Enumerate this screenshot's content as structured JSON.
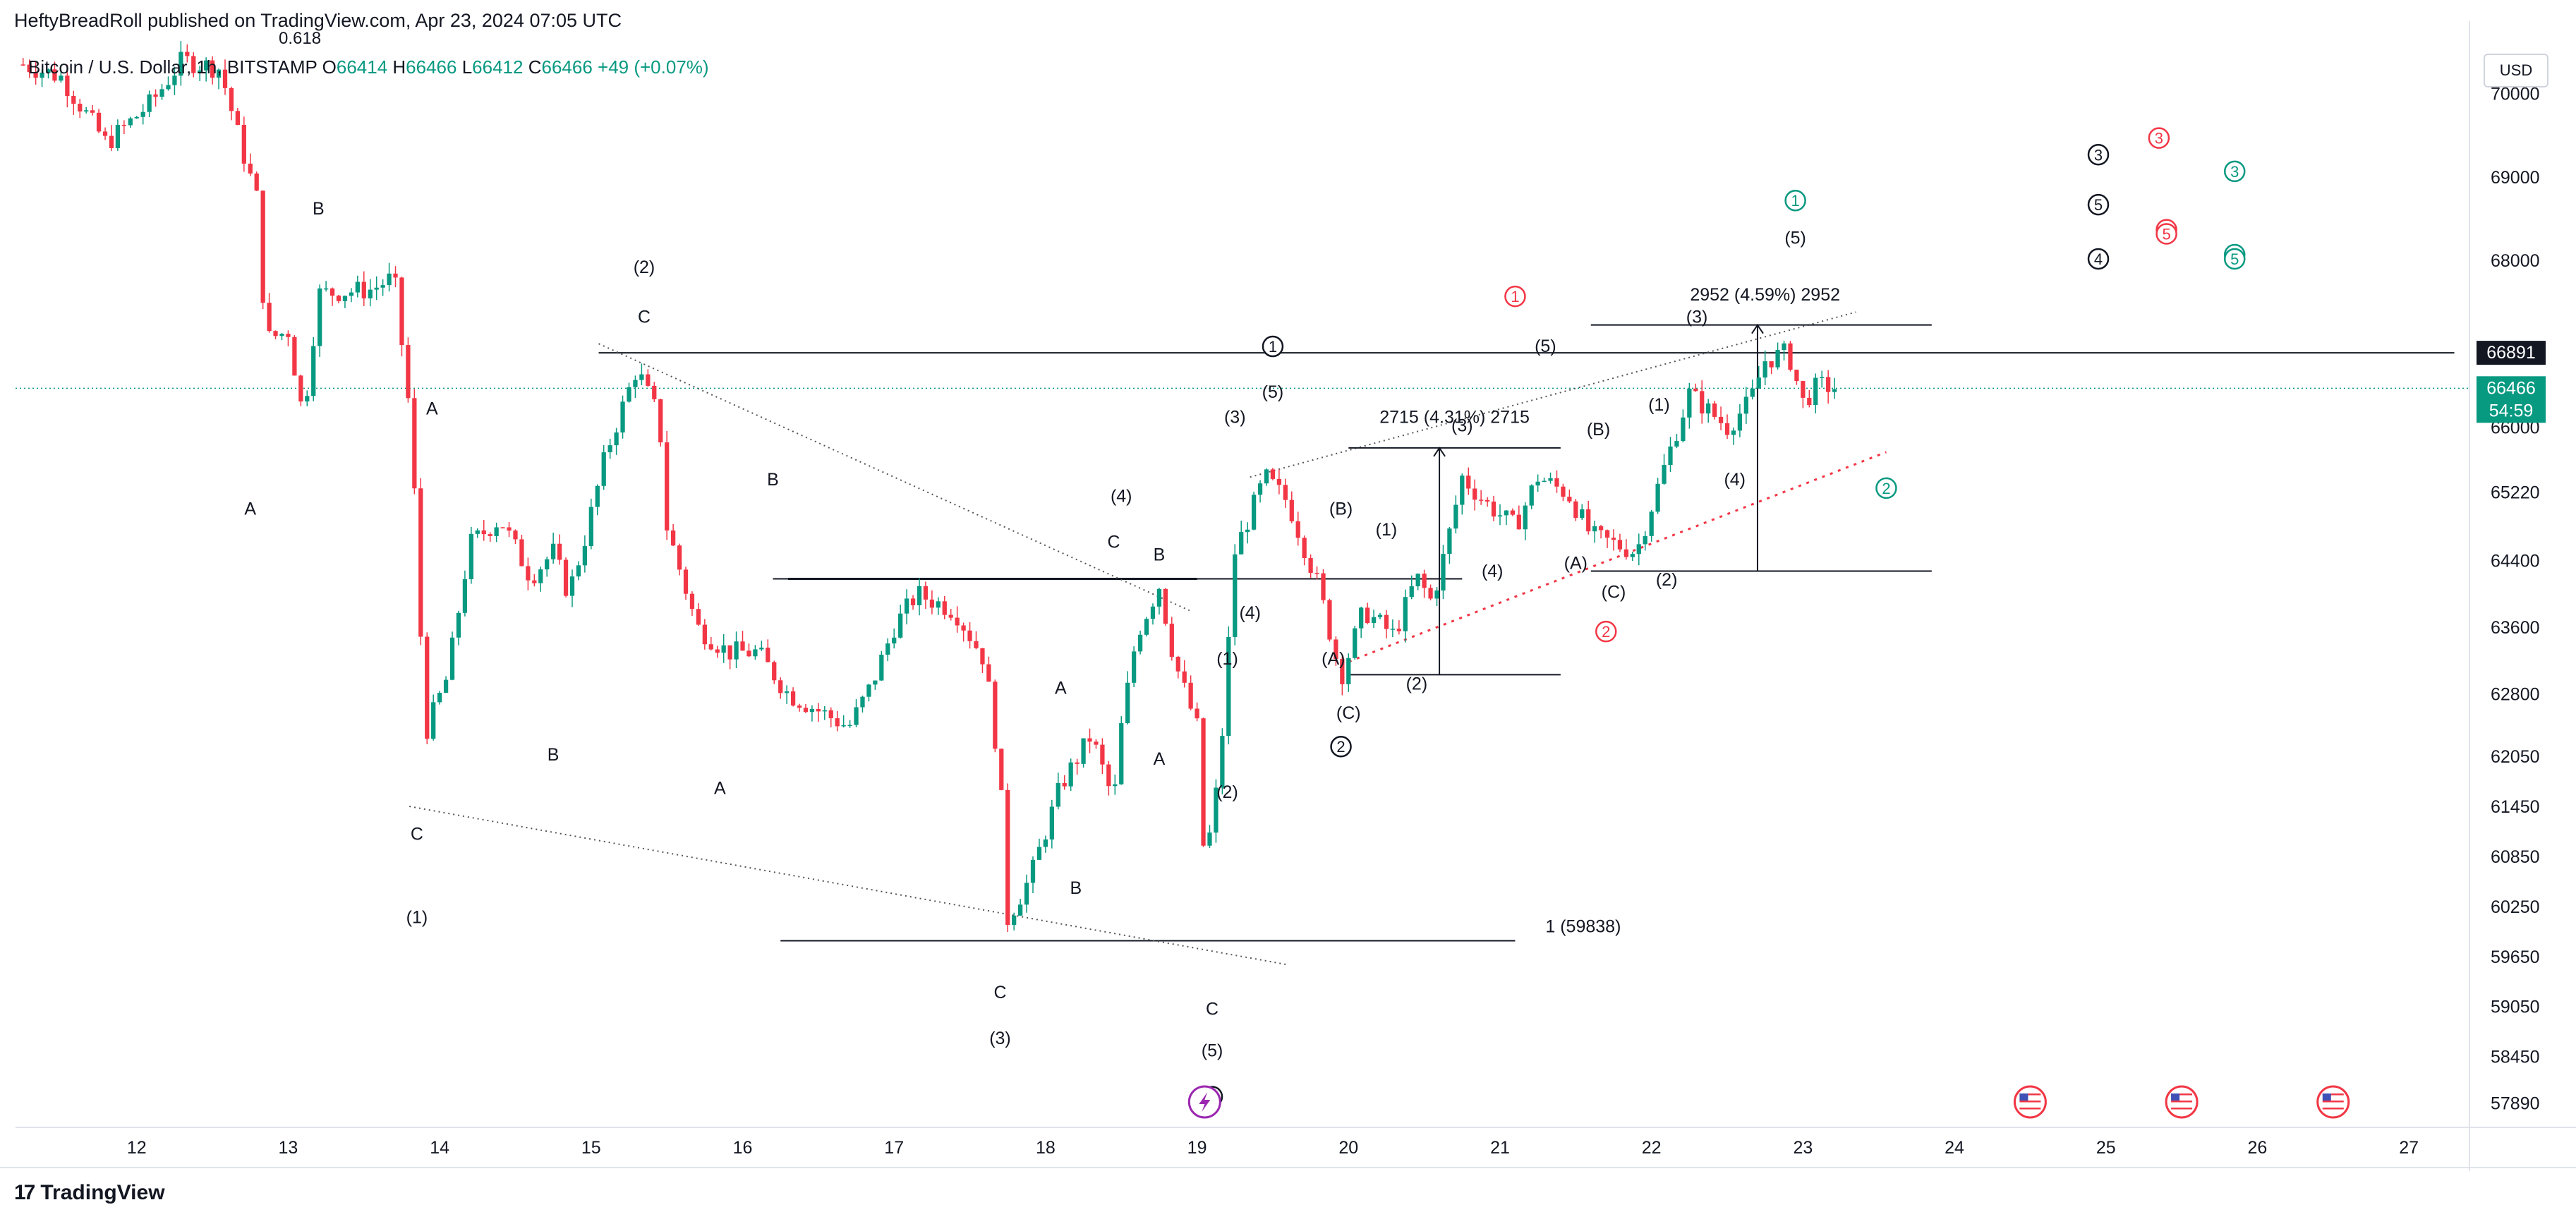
{
  "header": {
    "published_by": "HeftyBreadRoll published on TradingView.com, Apr 23, 2024 07:05 UTC",
    "currency_button": "USD",
    "brand": "TradingView"
  },
  "colors": {
    "up": "#089981",
    "down": "#f23645",
    "text": "#131722",
    "axis_border": "#e0e3eb",
    "dotted_red": "#f23645"
  },
  "chart_data": {
    "type": "candlestick",
    "symbol_line": {
      "symbol": "Bitcoin / U.S. Dollar, 1h, BITSTAMP",
      "open_label": "O",
      "open": "66414",
      "high_label": "H",
      "high": "66466",
      "low_label": "L",
      "low": "66412",
      "close_label": "C",
      "close": "66466",
      "change": "+49 (+0.07%)",
      "fib_label": "0.618"
    },
    "ylim": [
      57600,
      70700
    ],
    "y_ticks": [
      70000,
      69000,
      68000,
      66000,
      65220,
      64400,
      63600,
      62800,
      62050,
      61450,
      60850,
      60250,
      59650,
      59050,
      58450,
      57890
    ],
    "x_ticks": [
      {
        "label": "12",
        "day": 12
      },
      {
        "label": "13",
        "day": 13
      },
      {
        "label": "14",
        "day": 14
      },
      {
        "label": "15",
        "day": 15
      },
      {
        "label": "16",
        "day": 16
      },
      {
        "label": "17",
        "day": 17
      },
      {
        "label": "18",
        "day": 18
      },
      {
        "label": "19",
        "day": 19
      },
      {
        "label": "20",
        "day": 20
      },
      {
        "label": "21",
        "day": 21
      },
      {
        "label": "22",
        "day": 22
      },
      {
        "label": "23",
        "day": 23
      },
      {
        "label": "24",
        "day": 24
      },
      {
        "label": "25",
        "day": 25
      },
      {
        "label": "26",
        "day": 26
      },
      {
        "label": "27",
        "day": 27
      }
    ],
    "xlim": [
      11.2,
      27.4
    ],
    "price_badges": [
      {
        "value": "66891",
        "price": 66891,
        "bg": "#131722"
      },
      {
        "value": "66466",
        "sub": "54:59",
        "price": 66466,
        "bg": "#089981"
      }
    ],
    "path_points": [
      [
        11.25,
        70350
      ],
      [
        11.5,
        70200
      ],
      [
        11.8,
        69400
      ],
      [
        12.1,
        69900
      ],
      [
        12.3,
        70400
      ],
      [
        12.55,
        70300
      ],
      [
        12.7,
        69300
      ],
      [
        12.8,
        68700
      ],
      [
        12.85,
        67050
      ],
      [
        13.0,
        67150
      ],
      [
        13.1,
        66100
      ],
      [
        13.2,
        67600
      ],
      [
        13.55,
        67650
      ],
      [
        13.7,
        67800
      ],
      [
        13.8,
        66200
      ],
      [
        13.85,
        64700
      ],
      [
        13.9,
        62300
      ],
      [
        14.05,
        63000
      ],
      [
        14.2,
        64600
      ],
      [
        14.4,
        64900
      ],
      [
        14.6,
        64200
      ],
      [
        14.75,
        64500
      ],
      [
        14.85,
        64000
      ],
      [
        14.95,
        64600
      ],
      [
        15.1,
        65700
      ],
      [
        15.3,
        66700
      ],
      [
        15.45,
        66100
      ],
      [
        15.5,
        64800
      ],
      [
        15.7,
        63600
      ],
      [
        15.9,
        63300
      ],
      [
        16.1,
        63300
      ],
      [
        16.3,
        62800
      ],
      [
        16.5,
        62600
      ],
      [
        16.7,
        62400
      ],
      [
        16.85,
        62900
      ],
      [
        17.0,
        63600
      ],
      [
        17.15,
        64000
      ],
      [
        17.4,
        63800
      ],
      [
        17.6,
        63200
      ],
      [
        17.7,
        61800
      ],
      [
        17.75,
        60100
      ],
      [
        17.9,
        60600
      ],
      [
        18.1,
        61700
      ],
      [
        18.3,
        62300
      ],
      [
        18.45,
        61500
      ],
      [
        18.5,
        62400
      ],
      [
        18.6,
        63500
      ],
      [
        18.75,
        64100
      ],
      [
        18.85,
        63200
      ],
      [
        19.0,
        62400
      ],
      [
        19.05,
        60700
      ],
      [
        19.15,
        61900
      ],
      [
        19.25,
        64500
      ],
      [
        19.45,
        65400
      ],
      [
        19.6,
        65100
      ],
      [
        19.8,
        64100
      ],
      [
        19.95,
        63000
      ],
      [
        20.1,
        63800
      ],
      [
        20.3,
        63500
      ],
      [
        20.45,
        64200
      ],
      [
        20.55,
        63900
      ],
      [
        20.65,
        64600
      ],
      [
        20.75,
        65400
      ],
      [
        20.9,
        65100
      ],
      [
        21.1,
        64800
      ],
      [
        21.25,
        65400
      ],
      [
        21.45,
        65200
      ],
      [
        21.6,
        64700
      ],
      [
        21.75,
        64600
      ],
      [
        21.9,
        64500
      ],
      [
        22.1,
        65600
      ],
      [
        22.25,
        66400
      ],
      [
        22.5,
        66000
      ],
      [
        22.65,
        66300
      ],
      [
        22.75,
        66800
      ],
      [
        22.9,
        66900
      ],
      [
        23.0,
        66300
      ],
      [
        23.1,
        66500
      ],
      [
        23.25,
        66466
      ]
    ],
    "horizontal_lines": [
      {
        "from_day": 15.05,
        "to_day": 27.3,
        "price": 66891,
        "color": "#131722",
        "width": 2
      },
      {
        "from_day": 16.3,
        "to_day": 19.0,
        "price": 64180,
        "color": "#131722",
        "width": 3
      },
      {
        "from_day": 16.2,
        "to_day": 20.75,
        "price": 64180,
        "color": "#131722",
        "width": 2
      },
      {
        "from_day": 16.25,
        "to_day": 21.1,
        "price": 59838,
        "color": "#131722",
        "width": 2
      }
    ],
    "projection_boxes": [
      {
        "label": "2715 (4.31%) 2715",
        "from_day": 20.0,
        "to_day": 21.4,
        "top": 65750,
        "bottom": 63030,
        "arrow_day": 20.6,
        "label_day": 20.7,
        "label_price": 66050
      },
      {
        "label": "2952 (4.59%) 2952",
        "from_day": 21.6,
        "to_day": 23.85,
        "top": 67225,
        "bottom": 64273,
        "arrow_day": 22.7,
        "label_day": 22.75,
        "label_price": 67520
      }
    ],
    "fib_extension_label": {
      "text": "1 (59838)",
      "day": 21.3,
      "price": 59838
    },
    "dotted_lines": [
      {
        "from": [
          13.8,
          61450
        ],
        "to": [
          19.6,
          59550
        ],
        "color": "#555"
      },
      {
        "from": [
          15.05,
          67000
        ],
        "to": [
          18.95,
          63800
        ],
        "color": "#555"
      },
      {
        "from": [
          19.35,
          65400
        ],
        "to": [
          23.35,
          67380
        ],
        "color": "#555"
      },
      {
        "from": [
          19.95,
          63150
        ],
        "to": [
          23.55,
          65700
        ],
        "color": "#f23645"
      }
    ],
    "wave_labels": [
      {
        "text": "B",
        "day": 13.2,
        "price": 68550
      },
      {
        "text": "A",
        "day": 12.75,
        "price": 64950
      },
      {
        "text": "A",
        "day": 13.95,
        "price": 66150
      },
      {
        "text": "C",
        "day": 13.85,
        "price": 61050
      },
      {
        "text": "(1)",
        "day": 13.85,
        "price": 60050
      },
      {
        "text": "B",
        "day": 14.75,
        "price": 62000
      },
      {
        "text": "(2)",
        "day": 15.35,
        "price": 67850
      },
      {
        "text": "C",
        "day": 15.35,
        "price": 67250
      },
      {
        "text": "B",
        "day": 16.2,
        "price": 65300
      },
      {
        "text": "A",
        "day": 15.85,
        "price": 61600
      },
      {
        "text": "(4)",
        "day": 18.5,
        "price": 65100
      },
      {
        "text": "C",
        "day": 18.45,
        "price": 64550
      },
      {
        "text": "B",
        "day": 18.75,
        "price": 64400
      },
      {
        "text": "A",
        "day": 18.1,
        "price": 62800
      },
      {
        "text": "A",
        "day": 18.75,
        "price": 61950
      },
      {
        "text": "B",
        "day": 18.2,
        "price": 60400
      },
      {
        "text": "C",
        "day": 17.7,
        "price": 59150
      },
      {
        "text": "(3)",
        "day": 17.7,
        "price": 58600
      },
      {
        "text": "C",
        "day": 19.1,
        "price": 58950
      },
      {
        "text": "(5)",
        "day": 19.1,
        "price": 58450
      },
      {
        "text": "(3)",
        "day": 19.25,
        "price": 66050
      },
      {
        "text": "(5)",
        "day": 19.5,
        "price": 66350
      },
      {
        "text": "(4)",
        "day": 19.35,
        "price": 63700
      },
      {
        "text": "(1)",
        "day": 19.2,
        "price": 63150
      },
      {
        "text": "(2)",
        "day": 19.2,
        "price": 61550
      },
      {
        "text": "(B)",
        "day": 19.95,
        "price": 64950
      },
      {
        "text": "(A)",
        "day": 19.9,
        "price": 63150
      },
      {
        "text": "(C)",
        "day": 20.0,
        "price": 62500
      },
      {
        "text": "(1)",
        "day": 20.25,
        "price": 64700
      },
      {
        "text": "(3)",
        "day": 20.75,
        "price": 65950
      },
      {
        "text": "(4)",
        "day": 20.95,
        "price": 64200
      },
      {
        "text": "(2)",
        "day": 20.45,
        "price": 62850
      },
      {
        "text": "(5)",
        "day": 21.3,
        "price": 66900
      },
      {
        "text": "(B)",
        "day": 21.65,
        "price": 65900
      },
      {
        "text": "(A)",
        "day": 21.5,
        "price": 64300
      },
      {
        "text": "(C)",
        "day": 21.75,
        "price": 63950
      },
      {
        "text": "(2)",
        "day": 22.1,
        "price": 64100
      },
      {
        "text": "(1)",
        "day": 22.05,
        "price": 66200
      },
      {
        "text": "(3)",
        "day": 22.3,
        "price": 67250
      },
      {
        "text": "(4)",
        "day": 22.55,
        "price": 65300
      },
      {
        "text": "(5)",
        "day": 22.95,
        "price": 68200
      }
    ],
    "circled_labels": [
      {
        "text": "1",
        "day": 19.5,
        "price": 66900,
        "color": "#131722"
      },
      {
        "text": "2",
        "day": 19.95,
        "price": 62100,
        "color": "#131722"
      },
      {
        "text": "C",
        "day": 19.1,
        "price": 57900,
        "color": "#131722"
      },
      {
        "text": "1",
        "day": 21.1,
        "price": 67500,
        "color": "#f23645"
      },
      {
        "text": "2",
        "day": 21.7,
        "price": 63480,
        "color": "#f23645"
      },
      {
        "text": "1",
        "day": 22.95,
        "price": 68650,
        "color": "#089981"
      },
      {
        "text": "2",
        "day": 23.55,
        "price": 65200,
        "color": "#089981"
      },
      {
        "text": "3",
        "day": 24.95,
        "price": 69200,
        "color": "#131722"
      },
      {
        "text": "5",
        "day": 24.95,
        "price": 68600,
        "color": "#131722"
      },
      {
        "text": "4",
        "day": 24.95,
        "price": 67950,
        "color": "#131722"
      },
      {
        "text": "3",
        "day": 25.35,
        "price": 69400,
        "color": "#f23645"
      },
      {
        "text": "4",
        "day": 25.4,
        "price": 68300,
        "color": "#f23645"
      },
      {
        "text": "5",
        "day": 25.4,
        "price": 68250,
        "color": "#f23645"
      },
      {
        "text": "3",
        "day": 25.85,
        "price": 69000,
        "color": "#089981"
      },
      {
        "text": "4",
        "day": 25.85,
        "price": 68000,
        "color": "#089981"
      },
      {
        "text": "5",
        "day": 25.85,
        "price": 67950,
        "color": "#089981"
      }
    ],
    "event_icons": [
      {
        "name": "lightning-event-icon",
        "day": 19.05,
        "color": "#9c27b0"
      },
      {
        "name": "us-flag-event-icon",
        "day": 24.5,
        "color": "#f23645"
      },
      {
        "name": "us-flag-event-icon",
        "day": 25.5,
        "color": "#f23645"
      },
      {
        "name": "us-flag-event-icon",
        "day": 26.5,
        "color": "#f23645"
      }
    ]
  }
}
